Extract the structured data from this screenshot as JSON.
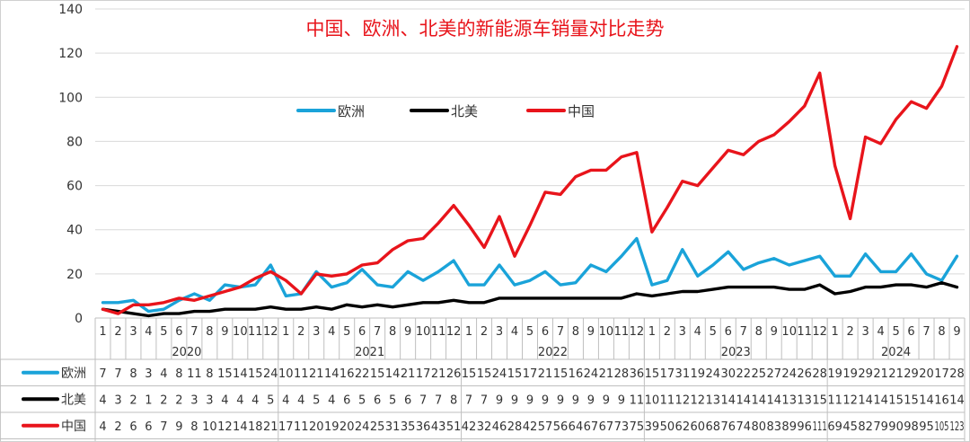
{
  "chart_data": {
    "type": "line",
    "title": "中国、欧洲、北美的新能源车销量对比走势",
    "xlabel": "",
    "ylabel": "",
    "ylim": [
      0,
      140
    ],
    "yticks": [
      0,
      20,
      40,
      60,
      80,
      100,
      120,
      140
    ],
    "grid": true,
    "legend": "top-center",
    "years": [
      {
        "label": "2020",
        "months": 12
      },
      {
        "label": "2021",
        "months": 12
      },
      {
        "label": "2022",
        "months": 12
      },
      {
        "label": "2023",
        "months": 12
      },
      {
        "label": "2024",
        "months": 9
      }
    ],
    "categories": [
      "1",
      "2",
      "3",
      "4",
      "5",
      "6",
      "7",
      "8",
      "9",
      "10",
      "11",
      "12",
      "1",
      "2",
      "3",
      "4",
      "5",
      "6",
      "7",
      "8",
      "9",
      "10",
      "11",
      "12",
      "1",
      "2",
      "3",
      "4",
      "5",
      "6",
      "7",
      "8",
      "9",
      "10",
      "11",
      "12",
      "1",
      "2",
      "3",
      "4",
      "5",
      "6",
      "7",
      "8",
      "9",
      "10",
      "11",
      "12",
      "1",
      "2",
      "3",
      "4",
      "5",
      "6",
      "7",
      "8",
      "9"
    ],
    "series": [
      {
        "name": "欧洲",
        "color": "#1aa3d9",
        "values": [
          7,
          7,
          8,
          3,
          4,
          8,
          11,
          8,
          15,
          14,
          15,
          24,
          10,
          11,
          21,
          14,
          16,
          22,
          15,
          14,
          21,
          17,
          21,
          26,
          15,
          15,
          24,
          15,
          17,
          21,
          15,
          16,
          24,
          21,
          28,
          36,
          15,
          17,
          31,
          19,
          24,
          30,
          22,
          25,
          27,
          24,
          26,
          28,
          19,
          19,
          29,
          21,
          21,
          29,
          20,
          17,
          28
        ]
      },
      {
        "name": "北美",
        "color": "#000000",
        "values": [
          4,
          3,
          2,
          1,
          2,
          2,
          3,
          3,
          4,
          4,
          4,
          5,
          4,
          4,
          5,
          4,
          6,
          5,
          6,
          5,
          6,
          7,
          7,
          8,
          7,
          7,
          9,
          9,
          9,
          9,
          9,
          9,
          9,
          9,
          9,
          11,
          10,
          11,
          12,
          12,
          13,
          14,
          14,
          14,
          14,
          13,
          13,
          15,
          11,
          12,
          14,
          14,
          15,
          15,
          14,
          16,
          14
        ]
      },
      {
        "name": "中国",
        "color": "#e8141b",
        "values": [
          4,
          2,
          6,
          6,
          7,
          9,
          8,
          10,
          12,
          14,
          18,
          21,
          17,
          11,
          20,
          19,
          20,
          24,
          25,
          31,
          35,
          36,
          43,
          51,
          42,
          32,
          46,
          28,
          42,
          57,
          56,
          64,
          67,
          67,
          73,
          75,
          39,
          50,
          62,
          60,
          68,
          76,
          74,
          80,
          83,
          89,
          96,
          111,
          69,
          45,
          82,
          79,
          90,
          98,
          95,
          105,
          123
        ]
      }
    ]
  }
}
